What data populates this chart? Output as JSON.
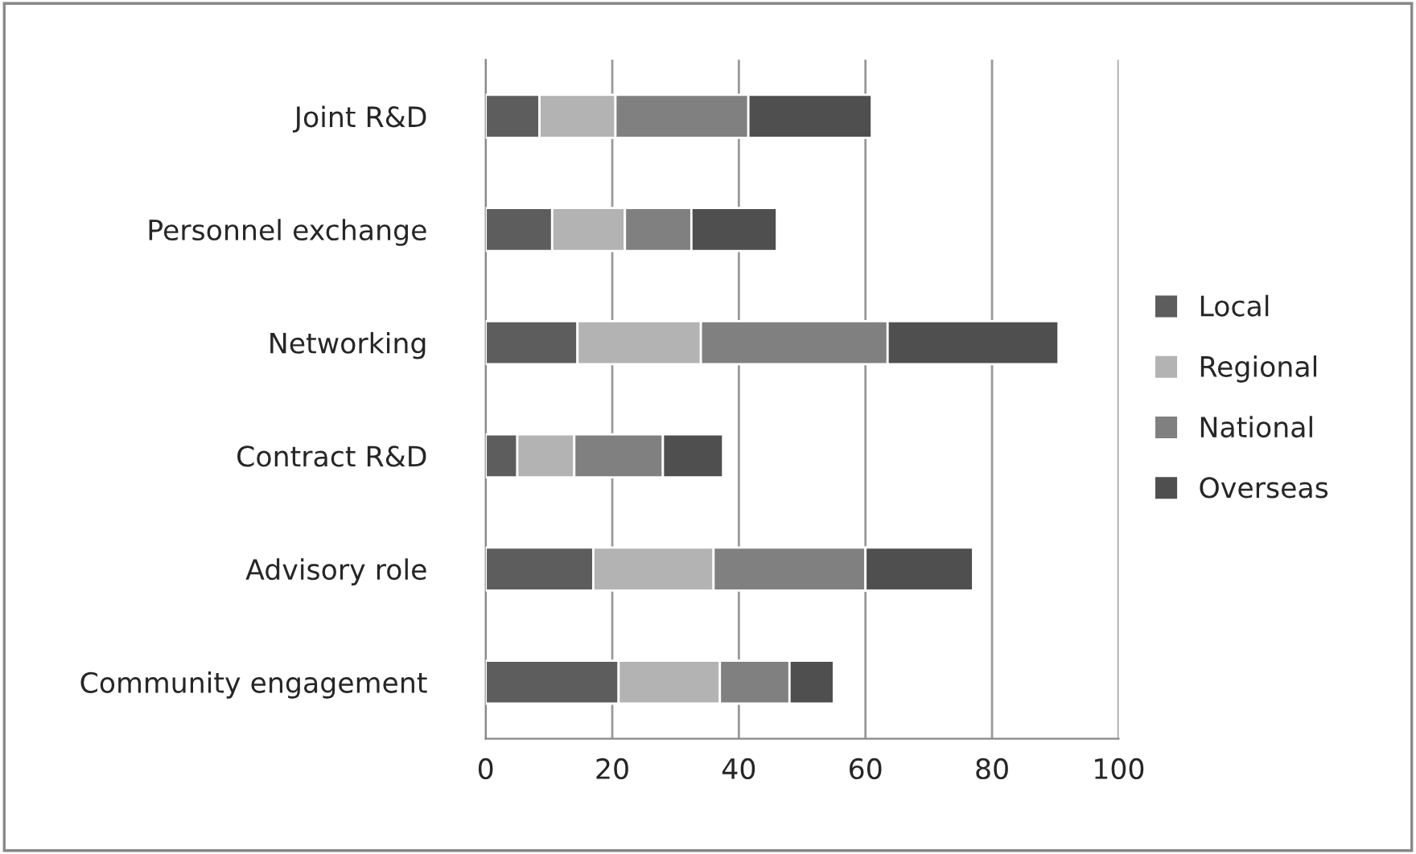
{
  "chart_data": {
    "type": "bar",
    "orientation": "horizontal",
    "stacked": true,
    "categories": [
      "Joint R&D",
      "Personnel exchange",
      "Networking",
      "Contract R&D",
      "Advisory role",
      "Community engagement"
    ],
    "series": [
      {
        "name": "Local",
        "color": "#5d5d5d",
        "values": [
          8.5,
          10.5,
          14.5,
          5,
          17,
          21
        ]
      },
      {
        "name": "Regional",
        "color": "#b3b3b3",
        "values": [
          12,
          11.5,
          19.5,
          9,
          19,
          16
        ]
      },
      {
        "name": "National",
        "color": "#808080",
        "values": [
          21,
          10.5,
          29.5,
          14,
          24,
          11
        ]
      },
      {
        "name": "Overseas",
        "color": "#4f4f4f",
        "values": [
          19.5,
          13.5,
          27,
          9.5,
          17,
          7
        ]
      }
    ],
    "xlim": [
      0,
      100
    ],
    "xticks": [
      0,
      20,
      40,
      60,
      80,
      100
    ],
    "grid": "x",
    "legend": "right"
  }
}
